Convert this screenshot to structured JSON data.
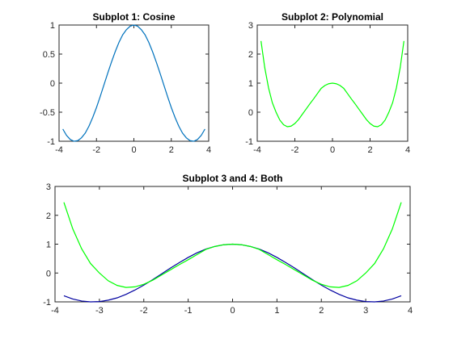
{
  "chart_data": [
    {
      "type": "line",
      "title": "Subplot 1: Cosine",
      "xlabel": "",
      "ylabel": "",
      "xlim": [
        -4,
        4
      ],
      "ylim": [
        -1,
        1
      ],
      "grid": false,
      "xticks": [
        "-4",
        "-2",
        "0",
        "2",
        "4"
      ],
      "yticks": [
        "-1",
        "-0.5",
        "0",
        "0.5",
        "1"
      ],
      "series": [
        {
          "color": "#0072BD",
          "x": [
            -3.8,
            -3.6,
            -3.4,
            -3.2,
            -3.0,
            -2.8,
            -2.6,
            -2.4,
            -2.2,
            -2.0,
            -1.8,
            -1.6,
            -1.4,
            -1.2,
            -1.0,
            -0.8,
            -0.6,
            -0.4,
            -0.2,
            0.0,
            0.2,
            0.4,
            0.6,
            0.8,
            1.0,
            1.2,
            1.4,
            1.6,
            1.8,
            2.0,
            2.2,
            2.4,
            2.6,
            2.8,
            3.0,
            3.2,
            3.4,
            3.6,
            3.8
          ],
          "y": [
            -0.79,
            -0.9,
            -0.97,
            -1.0,
            -0.99,
            -0.94,
            -0.86,
            -0.74,
            -0.59,
            -0.42,
            -0.23,
            -0.03,
            0.17,
            0.36,
            0.54,
            0.7,
            0.83,
            0.92,
            0.98,
            1.0,
            0.98,
            0.92,
            0.83,
            0.7,
            0.54,
            0.36,
            0.17,
            -0.03,
            -0.23,
            -0.42,
            -0.59,
            -0.74,
            -0.86,
            -0.94,
            -0.99,
            -1.0,
            -0.97,
            -0.9,
            -0.79
          ]
        }
      ]
    },
    {
      "type": "line",
      "title": "Subplot 2: Polynomial",
      "xlabel": "",
      "ylabel": "",
      "xlim": [
        -4,
        4
      ],
      "ylim": [
        -1,
        3
      ],
      "grid": false,
      "xticks": [
        "-4",
        "-2",
        "0",
        "2",
        "4"
      ],
      "yticks": [
        "-1",
        "0",
        "1",
        "2",
        "3"
      ],
      "series": [
        {
          "color": "#00FF00",
          "x": [
            -3.8,
            -3.6,
            -3.4,
            -3.2,
            -3.0,
            -2.8,
            -2.6,
            -2.4,
            -2.2,
            -2.0,
            -1.8,
            -1.6,
            -1.4,
            -1.2,
            -1.0,
            -0.8,
            -0.6,
            -0.4,
            -0.2,
            0.0,
            0.2,
            0.4,
            0.6,
            0.8,
            1.0,
            1.2,
            1.4,
            1.6,
            1.8,
            2.0,
            2.2,
            2.4,
            2.6,
            2.8,
            3.0,
            3.2,
            3.4,
            3.6,
            3.8
          ],
          "y": [
            2.45,
            1.53,
            0.84,
            0.33,
            -0.0,
            -0.27,
            -0.43,
            -0.5,
            -0.48,
            -0.39,
            -0.25,
            -0.07,
            0.11,
            0.29,
            0.46,
            0.64,
            0.82,
            0.92,
            0.98,
            1.0,
            0.98,
            0.92,
            0.82,
            0.64,
            0.46,
            0.29,
            0.11,
            -0.07,
            -0.25,
            -0.39,
            -0.48,
            -0.5,
            -0.43,
            -0.27,
            -0.0,
            0.33,
            0.84,
            1.53,
            2.45
          ]
        }
      ]
    },
    {
      "type": "line",
      "title": "Subplot 3 and 4: Both",
      "xlabel": "",
      "ylabel": "",
      "xlim": [
        -4,
        4
      ],
      "ylim": [
        -1,
        3
      ],
      "grid": false,
      "xticks": [
        "-4",
        "-3",
        "-2",
        "-1",
        "0",
        "1",
        "2",
        "3",
        "4"
      ],
      "yticks": [
        "-1",
        "0",
        "1",
        "2",
        "3"
      ],
      "series": [
        {
          "color": "#0000A0",
          "x": [
            -3.8,
            -3.6,
            -3.4,
            -3.2,
            -3.0,
            -2.8,
            -2.6,
            -2.4,
            -2.2,
            -2.0,
            -1.8,
            -1.6,
            -1.4,
            -1.2,
            -1.0,
            -0.8,
            -0.6,
            -0.4,
            -0.2,
            0.0,
            0.2,
            0.4,
            0.6,
            0.8,
            1.0,
            1.2,
            1.4,
            1.6,
            1.8,
            2.0,
            2.2,
            2.4,
            2.6,
            2.8,
            3.0,
            3.2,
            3.4,
            3.6,
            3.8
          ],
          "y": [
            -0.79,
            -0.9,
            -0.97,
            -1.0,
            -0.99,
            -0.94,
            -0.86,
            -0.74,
            -0.59,
            -0.42,
            -0.23,
            -0.03,
            0.17,
            0.36,
            0.54,
            0.7,
            0.83,
            0.92,
            0.98,
            1.0,
            0.98,
            0.92,
            0.83,
            0.7,
            0.54,
            0.36,
            0.17,
            -0.03,
            -0.23,
            -0.42,
            -0.59,
            -0.74,
            -0.86,
            -0.94,
            -0.99,
            -1.0,
            -0.97,
            -0.9,
            -0.79
          ]
        },
        {
          "color": "#00FF00",
          "x": [
            -3.8,
            -3.6,
            -3.4,
            -3.2,
            -3.0,
            -2.8,
            -2.6,
            -2.4,
            -2.2,
            -2.0,
            -1.8,
            -1.6,
            -1.4,
            -1.2,
            -1.0,
            -0.8,
            -0.6,
            -0.4,
            -0.2,
            0.0,
            0.2,
            0.4,
            0.6,
            0.8,
            1.0,
            1.2,
            1.4,
            1.6,
            1.8,
            2.0,
            2.2,
            2.4,
            2.6,
            2.8,
            3.0,
            3.2,
            3.4,
            3.6,
            3.8
          ],
          "y": [
            2.45,
            1.53,
            0.84,
            0.33,
            -0.0,
            -0.27,
            -0.43,
            -0.5,
            -0.48,
            -0.39,
            -0.25,
            -0.07,
            0.11,
            0.29,
            0.46,
            0.64,
            0.82,
            0.92,
            0.98,
            1.0,
            0.98,
            0.92,
            0.82,
            0.64,
            0.46,
            0.29,
            0.11,
            -0.07,
            -0.25,
            -0.39,
            -0.48,
            -0.5,
            -0.43,
            -0.27,
            -0.0,
            0.33,
            0.84,
            1.53,
            2.45
          ]
        }
      ]
    }
  ]
}
